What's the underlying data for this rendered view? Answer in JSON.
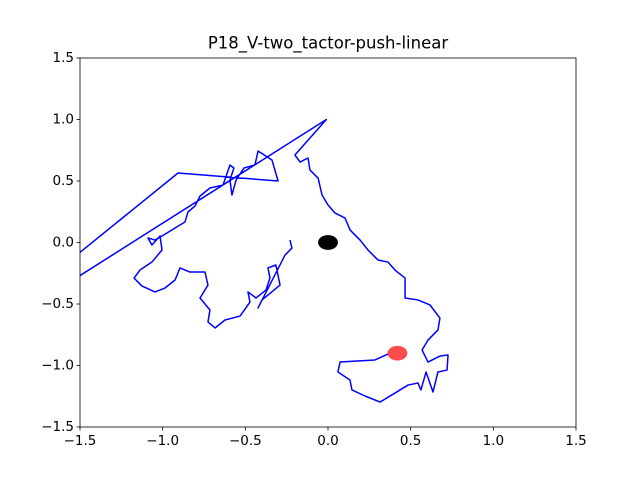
{
  "chart_data": {
    "type": "line",
    "title": "P18_V-two_tactor-push-linear",
    "xlim": [
      -1.5,
      1.5
    ],
    "ylim": [
      -1.5,
      1.5
    ],
    "xticks": [
      {
        "value": -1.5,
        "label": "−1.5"
      },
      {
        "value": -1.0,
        "label": "−1.0"
      },
      {
        "value": -0.5,
        "label": "−0.5"
      },
      {
        "value": 0.0,
        "label": "0.0"
      },
      {
        "value": 0.5,
        "label": "0.5"
      },
      {
        "value": 1.0,
        "label": "1.0"
      },
      {
        "value": 1.5,
        "label": "1.5"
      }
    ],
    "yticks": [
      {
        "value": -1.5,
        "label": "−1.5"
      },
      {
        "value": -1.0,
        "label": "−1.0"
      },
      {
        "value": -0.5,
        "label": "−0.5"
      },
      {
        "value": 0.0,
        "label": "0.0"
      },
      {
        "value": 0.5,
        "label": "0.5"
      },
      {
        "value": 1.0,
        "label": "1.0"
      },
      {
        "value": 1.5,
        "label": "1.5"
      }
    ],
    "series": [
      {
        "color": "#0000ff",
        "x": [
          0.363,
          0.284,
          0.073,
          0.06,
          0.133,
          0.145,
          0.224,
          0.315,
          0.405,
          0.484,
          0.544,
          0.562,
          0.593,
          0.635,
          0.665,
          0.72,
          0.726,
          0.677,
          0.605,
          0.569,
          0.605,
          0.665,
          0.677,
          0.617,
          0.544,
          0.466,
          0.466,
          0.405,
          0.363,
          0.302,
          0.242,
          0.194,
          0.133,
          0.103,
          0.042,
          0.0,
          -0.036,
          -0.06,
          -0.109,
          -0.121,
          -0.169,
          -0.2,
          -0.01,
          -2.3,
          -0.907,
          -0.302,
          -0.339,
          -0.423,
          -0.442,
          -0.508,
          -0.556,
          -0.581,
          -0.593,
          -0.569,
          -0.593,
          -0.635,
          -0.714,
          -0.774,
          -0.804,
          -0.847,
          -0.865,
          -0.925,
          -1.004,
          -1.046,
          -1.089,
          -1.065,
          -1.016,
          -1.004,
          -1.065,
          -1.137,
          -1.173,
          -1.125,
          -1.046,
          -0.986,
          -0.925,
          -0.895,
          -0.835,
          -0.744,
          -0.726,
          -0.774,
          -0.714,
          -0.726,
          -0.683,
          -0.623,
          -0.532,
          -0.472,
          -0.484,
          -0.435,
          -0.375,
          -0.351,
          -0.363,
          -0.315,
          -0.29,
          -0.399,
          -0.423,
          -0.26,
          -0.218,
          -0.23
        ],
        "values": [
          -0.907,
          -0.955,
          -0.972,
          -1.053,
          -1.118,
          -1.199,
          -1.248,
          -1.297,
          -1.224,
          -1.159,
          -1.142,
          -1.199,
          -1.053,
          -1.215,
          -1.053,
          -1.037,
          -0.915,
          -0.923,
          -0.972,
          -0.874,
          -0.793,
          -0.711,
          -0.614,
          -0.508,
          -0.467,
          -0.451,
          -0.289,
          -0.224,
          -0.159,
          -0.142,
          -0.061,
          0.02,
          0.102,
          0.199,
          0.24,
          0.305,
          0.386,
          0.524,
          0.589,
          0.687,
          0.654,
          0.711,
          1.0,
          -0.95,
          0.565,
          0.5,
          0.671,
          0.744,
          0.63,
          0.606,
          0.508,
          0.386,
          0.508,
          0.606,
          0.63,
          0.467,
          0.443,
          0.378,
          0.297,
          0.248,
          0.167,
          0.118,
          0.053,
          0.02,
          0.037,
          -0.02,
          0.053,
          -0.061,
          -0.159,
          -0.224,
          -0.289,
          -0.354,
          -0.402,
          -0.37,
          -0.305,
          -0.207,
          -0.24,
          -0.24,
          -0.346,
          -0.451,
          -0.549,
          -0.646,
          -0.695,
          -0.63,
          -0.598,
          -0.484,
          -0.402,
          -0.451,
          -0.386,
          -0.289,
          -0.207,
          -0.183,
          -0.346,
          -0.467,
          -0.532,
          -0.102,
          -0.045,
          0.02
        ]
      }
    ],
    "markers": [
      {
        "x": 0.0,
        "y": 0.0,
        "radius": 0.06,
        "color": "#000000",
        "alpha": 1
      },
      {
        "x": 0.42,
        "y": -0.9,
        "radius": 0.06,
        "color": "#ff0000",
        "alpha": 0.7
      }
    ]
  }
}
